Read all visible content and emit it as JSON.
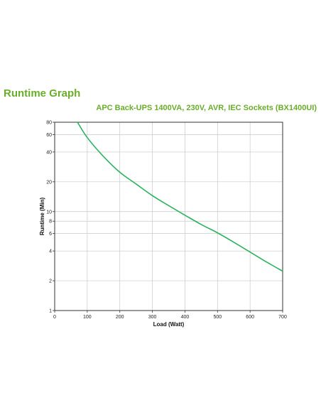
{
  "header": {
    "title": "Runtime Graph",
    "subtitle": "APC Back-UPS 1400VA, 230V, AVR, IEC Sockets (BX1400UI)"
  },
  "colors": {
    "title": "#6aad2a",
    "line": "#2bb35f",
    "grid": "#c8c8c8"
  },
  "chart_data": {
    "type": "line",
    "title": "APC Back-UPS 1400VA, 230V, AVR, IEC Sockets (BX1400UI)",
    "xlabel": "Load (Watt)",
    "ylabel": "Runtime (Min)",
    "xlim": [
      0,
      700
    ],
    "ylim": [
      1,
      80
    ],
    "yscale": "log",
    "grid": true,
    "legend": "none",
    "x_ticks": [
      0,
      100,
      200,
      300,
      400,
      500,
      600,
      700
    ],
    "y_ticks": [
      1,
      2,
      4,
      6,
      8,
      10,
      20,
      40,
      60,
      80
    ],
    "series": [
      {
        "x": [
          70,
          100,
          150,
          200,
          250,
          300,
          350,
          400,
          450,
          500,
          550,
          600,
          650,
          700
        ],
        "values": [
          80,
          56,
          36,
          25,
          19,
          14.5,
          11.5,
          9.2,
          7.4,
          6.1,
          4.9,
          3.9,
          3.1,
          2.5
        ]
      }
    ]
  }
}
